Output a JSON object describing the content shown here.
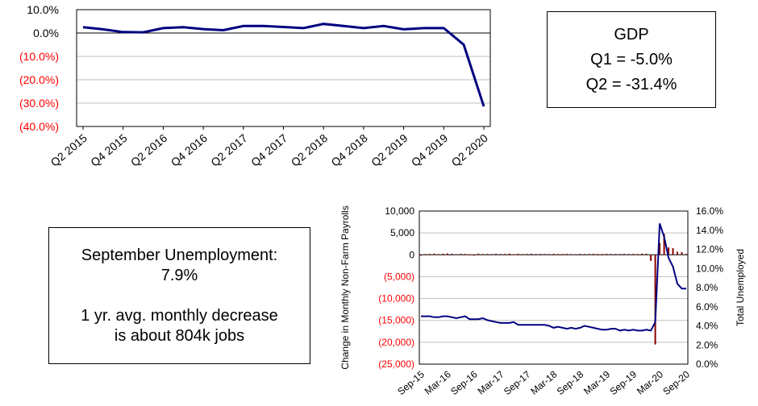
{
  "colors": {
    "series_line": "#000080",
    "bar": "#8b0000",
    "negative_tick": "#ff0000",
    "grid": "#bfbfbf"
  },
  "gdp_box": {
    "title": "GDP",
    "q1": "Q1 = -5.0%",
    "q2": "Q2 = -31.4%"
  },
  "unemp_box": {
    "line1": "September Unemployment:",
    "line2": "7.9%",
    "line3": "1 yr. avg. monthly decrease",
    "line4": "is about 804k jobs"
  },
  "chart_data": [
    {
      "type": "line",
      "title": "",
      "xlabel": "",
      "ylabel": "",
      "ylim": [
        -40,
        10
      ],
      "y_ticks": [
        "10.0%",
        "0.0%",
        "(10.0%)",
        "(20.0%)",
        "(30.0%)",
        "(40.0%)"
      ],
      "x_tick_labels": [
        "Q2 2015",
        "Q4 2015",
        "Q2 2016",
        "Q4 2016",
        "Q2 2017",
        "Q4 2017",
        "Q2 2018",
        "Q4 2018",
        "Q2 2019",
        "Q4 2019",
        "Q2 2020"
      ],
      "categories": [
        "Q2 2015",
        "Q3 2015",
        "Q4 2015",
        "Q1 2016",
        "Q2 2016",
        "Q3 2016",
        "Q4 2016",
        "Q1 2017",
        "Q2 2017",
        "Q3 2017",
        "Q4 2017",
        "Q1 2018",
        "Q2 2018",
        "Q3 2018",
        "Q4 2018",
        "Q1 2019",
        "Q2 2019",
        "Q3 2019",
        "Q4 2019",
        "Q1 2020",
        "Q2 2020"
      ],
      "values": [
        2.5,
        1.6,
        0.4,
        0.3,
        2.1,
        2.5,
        1.7,
        1.2,
        3.0,
        3.0,
        2.6,
        2.1,
        3.9,
        3.0,
        2.1,
        3.0,
        1.6,
        2.1,
        2.1,
        -5.0,
        -31.4
      ],
      "grid": true,
      "legend": "none"
    },
    {
      "type": "bar+line",
      "ylabel": "Change in Monthly Non-Farm Payrolls",
      "ylabel_right": "Total Unemployed",
      "ylim": [
        -25000,
        10000
      ],
      "ylim_right": [
        0,
        16
      ],
      "y_ticks": [
        "10,000",
        "5,000",
        "0",
        "(5,000)",
        "(10,000)",
        "(15,000)",
        "(20,000)",
        "(25,000)"
      ],
      "y_ticks_right": [
        "16.0%",
        "14.0%",
        "12.0%",
        "10.0%",
        "8.0%",
        "6.0%",
        "4.0%",
        "2.0%",
        "0.0%"
      ],
      "x_tick_labels": [
        "Sep-15",
        "Mar-16",
        "Sep-16",
        "Mar-17",
        "Sep-17",
        "Mar-18",
        "Sep-18",
        "Mar-19",
        "Sep-19",
        "Mar-20",
        "Sep-20"
      ],
      "x": [
        0,
        1,
        2,
        3,
        4,
        5,
        6,
        7,
        8,
        9,
        10,
        11,
        12,
        13,
        14,
        15,
        16,
        17,
        18,
        19,
        20,
        21,
        22,
        23,
        24,
        25,
        26,
        27,
        28,
        29,
        30,
        31,
        32,
        33,
        34,
        35,
        36,
        37,
        38,
        39,
        40,
        41,
        42,
        43,
        44,
        45,
        46,
        47,
        48,
        49,
        50,
        51,
        52,
        53,
        54,
        55,
        56,
        57,
        58,
        59,
        60
      ],
      "unemployment_rate": [
        5.0,
        5.0,
        5.0,
        4.9,
        4.9,
        5.0,
        5.0,
        4.9,
        4.8,
        4.9,
        5.0,
        4.7,
        4.7,
        4.7,
        4.8,
        4.6,
        4.5,
        4.4,
        4.3,
        4.3,
        4.3,
        4.4,
        4.1,
        4.1,
        4.1,
        4.1,
        4.1,
        4.1,
        4.1,
        4.0,
        3.8,
        3.9,
        3.8,
        3.7,
        3.8,
        3.7,
        3.8,
        4.0,
        3.9,
        3.8,
        3.7,
        3.6,
        3.6,
        3.7,
        3.7,
        3.5,
        3.6,
        3.5,
        3.6,
        3.5,
        3.5,
        3.6,
        3.5,
        4.4,
        14.7,
        13.3,
        11.1,
        10.2,
        8.4,
        7.9,
        7.9
      ],
      "payroll_change": [
        0,
        180,
        200,
        250,
        170,
        230,
        310,
        240,
        150,
        220,
        200,
        50,
        0,
        250,
        180,
        200,
        170,
        230,
        190,
        200,
        270,
        150,
        220,
        170,
        200,
        230,
        190,
        200,
        180,
        170,
        210,
        180,
        190,
        200,
        170,
        150,
        200,
        180,
        200,
        210,
        190,
        180,
        220,
        200,
        190,
        180,
        210,
        190,
        200,
        180,
        250,
        230,
        -1400,
        -20500,
        2700,
        4800,
        1700,
        1500,
        700,
        600,
        200
      ],
      "grid": true,
      "legend": "none"
    }
  ]
}
